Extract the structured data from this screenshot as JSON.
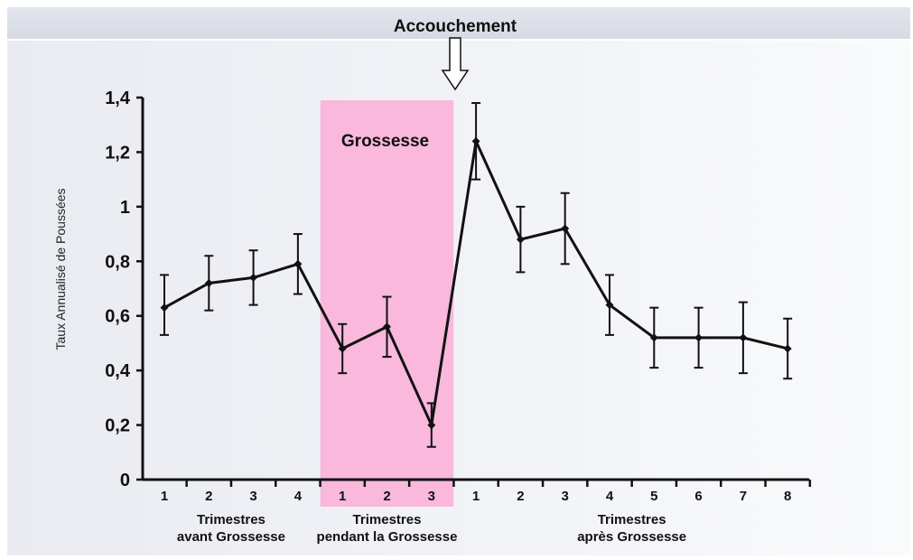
{
  "top_annotation": "Accouchement",
  "pregnancy_band": {
    "label": "Grossesse",
    "color": "#f9b8dc",
    "from_index": 4,
    "to_index": 6
  },
  "group_labels": [
    {
      "line1": "Trimestres",
      "line2": "avant Grossesse"
    },
    {
      "line1": "Trimestres",
      "line2": "pendant la Grossesse"
    },
    {
      "line1": "Trimestres",
      "line2": "après Grossesse"
    }
  ],
  "colors": {
    "line": "#111111",
    "arrow_fill": "#ffffff",
    "arrow_stroke": "#111111"
  },
  "chart_data": {
    "type": "line",
    "title": "",
    "xlabel": "",
    "ylabel": "Taux Annualisé de Poussées",
    "ylim": [
      0,
      1.4
    ],
    "y_ticks": [
      "0",
      "0,2",
      "0,4",
      "0,6",
      "0,8",
      "1",
      "1,2",
      "1,4"
    ],
    "categories": [
      "1",
      "2",
      "3",
      "4",
      "1",
      "2",
      "3",
      "1",
      "2",
      "3",
      "4",
      "5",
      "6",
      "7",
      "8"
    ],
    "groups": [
      {
        "name": "avant Grossesse",
        "count": 4
      },
      {
        "name": "pendant la Grossesse",
        "count": 3
      },
      {
        "name": "après Grossesse",
        "count": 8
      }
    ],
    "series": [
      {
        "values": [
          0.63,
          0.72,
          0.74,
          0.79,
          0.48,
          0.56,
          0.2,
          1.24,
          0.88,
          0.92,
          0.64,
          0.52,
          0.52,
          0.52,
          0.48
        ],
        "error_low": [
          0.53,
          0.62,
          0.64,
          0.68,
          0.39,
          0.45,
          0.12,
          1.1,
          0.76,
          0.79,
          0.53,
          0.41,
          0.41,
          0.39,
          0.37
        ],
        "error_high": [
          0.75,
          0.82,
          0.84,
          0.9,
          0.57,
          0.67,
          0.28,
          1.38,
          1.0,
          1.05,
          0.75,
          0.63,
          0.63,
          0.65,
          0.59
        ]
      }
    ],
    "grid": false,
    "legend": "none"
  }
}
